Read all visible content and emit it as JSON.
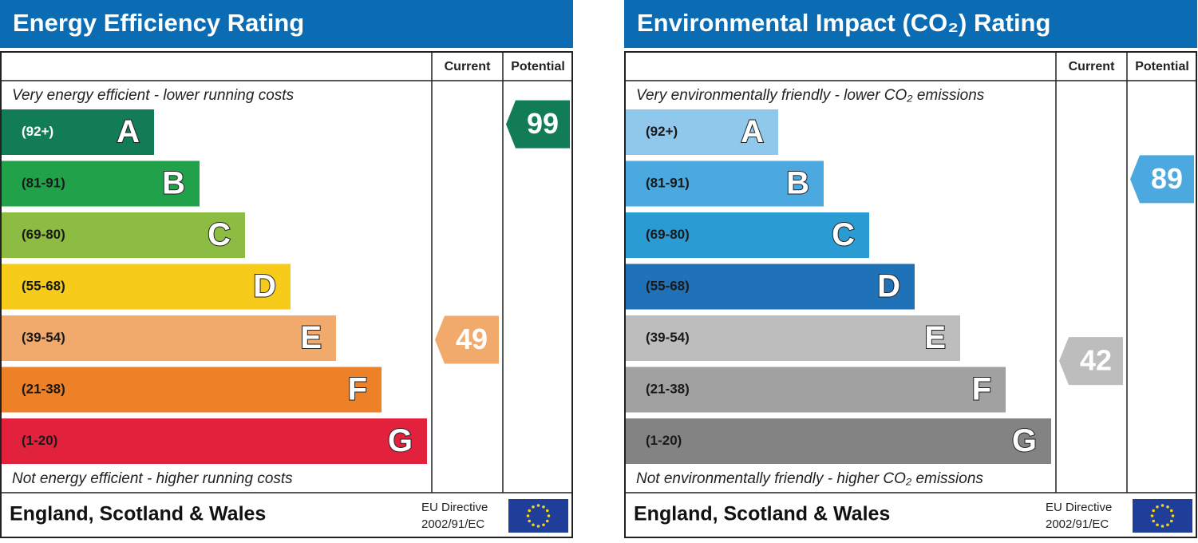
{
  "panels": [
    {
      "title": "Energy Efficiency Rating",
      "columns": [
        "Current",
        "Potential"
      ],
      "top_note": "Very energy efficient - lower running costs",
      "bands": [
        {
          "range": "(92+)",
          "letter": "A",
          "color": "#117c55"
        },
        {
          "range": "(81-91)",
          "letter": "B",
          "color": "#22a14b"
        },
        {
          "range": "(69-80)",
          "letter": "C",
          "color": "#8dbc42"
        },
        {
          "range": "(55-68)",
          "letter": "D",
          "color": "#f6cb1a"
        },
        {
          "range": "(39-54)",
          "letter": "E",
          "color": "#f1a96c"
        },
        {
          "range": "(21-38)",
          "letter": "F",
          "color": "#ec8128"
        },
        {
          "range": "(1-20)",
          "letter": "G",
          "color": "#e2213c"
        }
      ],
      "bottom_note": "Not energy efficient - higher running costs",
      "current": 49,
      "potential": 99,
      "footer": "England, Scotland & Wales",
      "directive": [
        "EU Directive",
        "2002/91/EC"
      ]
    },
    {
      "title": "Environmental Impact (CO₂) Rating",
      "columns": [
        "Current",
        "Potential"
      ],
      "top_note": "Very environmentally friendly - lower CO₂ emissions",
      "bands": [
        {
          "range": "(92+)",
          "letter": "A",
          "color": "#8fc8ea"
        },
        {
          "range": "(81-91)",
          "letter": "B",
          "color": "#4ba9df"
        },
        {
          "range": "(69-80)",
          "letter": "C",
          "color": "#2b9bd4"
        },
        {
          "range": "(55-68)",
          "letter": "D",
          "color": "#1f71b8"
        },
        {
          "range": "(39-54)",
          "letter": "E",
          "color": "#bdbdbd"
        },
        {
          "range": "(21-38)",
          "letter": "F",
          "color": "#a1a1a1"
        },
        {
          "range": "(1-20)",
          "letter": "G",
          "color": "#838383"
        }
      ],
      "bottom_note": "Not environmentally friendly - higher CO₂ emissions",
      "current": 42,
      "potential": 89,
      "footer": "England, Scotland & Wales",
      "directive": [
        "EU Directive",
        "2002/91/EC"
      ]
    }
  ]
}
